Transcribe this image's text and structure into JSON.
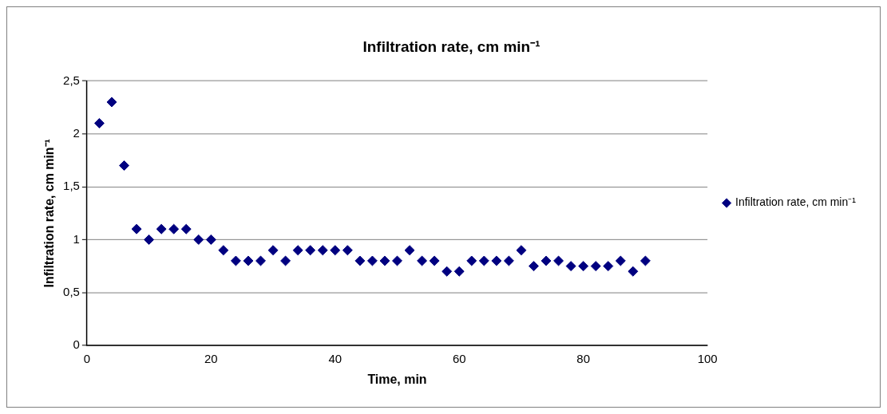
{
  "chart_data": {
    "type": "scatter",
    "title": "Infiltration rate, cm min⁻¹",
    "xlabel": "Time, min",
    "ylabel": "Infiltration rate, cm min⁻¹",
    "x": [
      2,
      4,
      6,
      8,
      10,
      12,
      14,
      16,
      18,
      20,
      22,
      24,
      26,
      28,
      30,
      32,
      34,
      36,
      38,
      40,
      42,
      44,
      46,
      48,
      50,
      52,
      54,
      56,
      58,
      60,
      62,
      64,
      66,
      68,
      70,
      72,
      74,
      76,
      78,
      80,
      82,
      84,
      86,
      88,
      90
    ],
    "series": [
      {
        "name": "Infiltration rate, cm min⁻¹",
        "color": "#000080",
        "values": [
          2.1,
          2.3,
          1.7,
          1.1,
          1.0,
          1.1,
          1.1,
          1.1,
          1.0,
          1.0,
          0.9,
          0.8,
          0.8,
          0.8,
          0.9,
          0.8,
          0.9,
          0.9,
          0.9,
          0.9,
          0.9,
          0.8,
          0.8,
          0.8,
          0.8,
          0.9,
          0.8,
          0.8,
          0.7,
          0.7,
          0.8,
          0.8,
          0.8,
          0.8,
          0.9,
          0.75,
          0.8,
          0.8,
          0.75,
          0.75,
          0.75,
          0.75,
          0.8,
          0.7,
          0.8
        ]
      }
    ],
    "xlim": [
      0,
      100
    ],
    "xticks": [
      0,
      20,
      40,
      60,
      80,
      100
    ],
    "ylim": [
      0,
      2.5
    ],
    "yticks": [
      0,
      {
        "value": 0.5,
        "label": "0,5"
      },
      1,
      {
        "value": 1.5,
        "label": "1,5"
      },
      2,
      {
        "value": 2.5,
        "label": "2,5"
      }
    ],
    "grid": "y",
    "legend": "right",
    "marker": "diamond"
  }
}
